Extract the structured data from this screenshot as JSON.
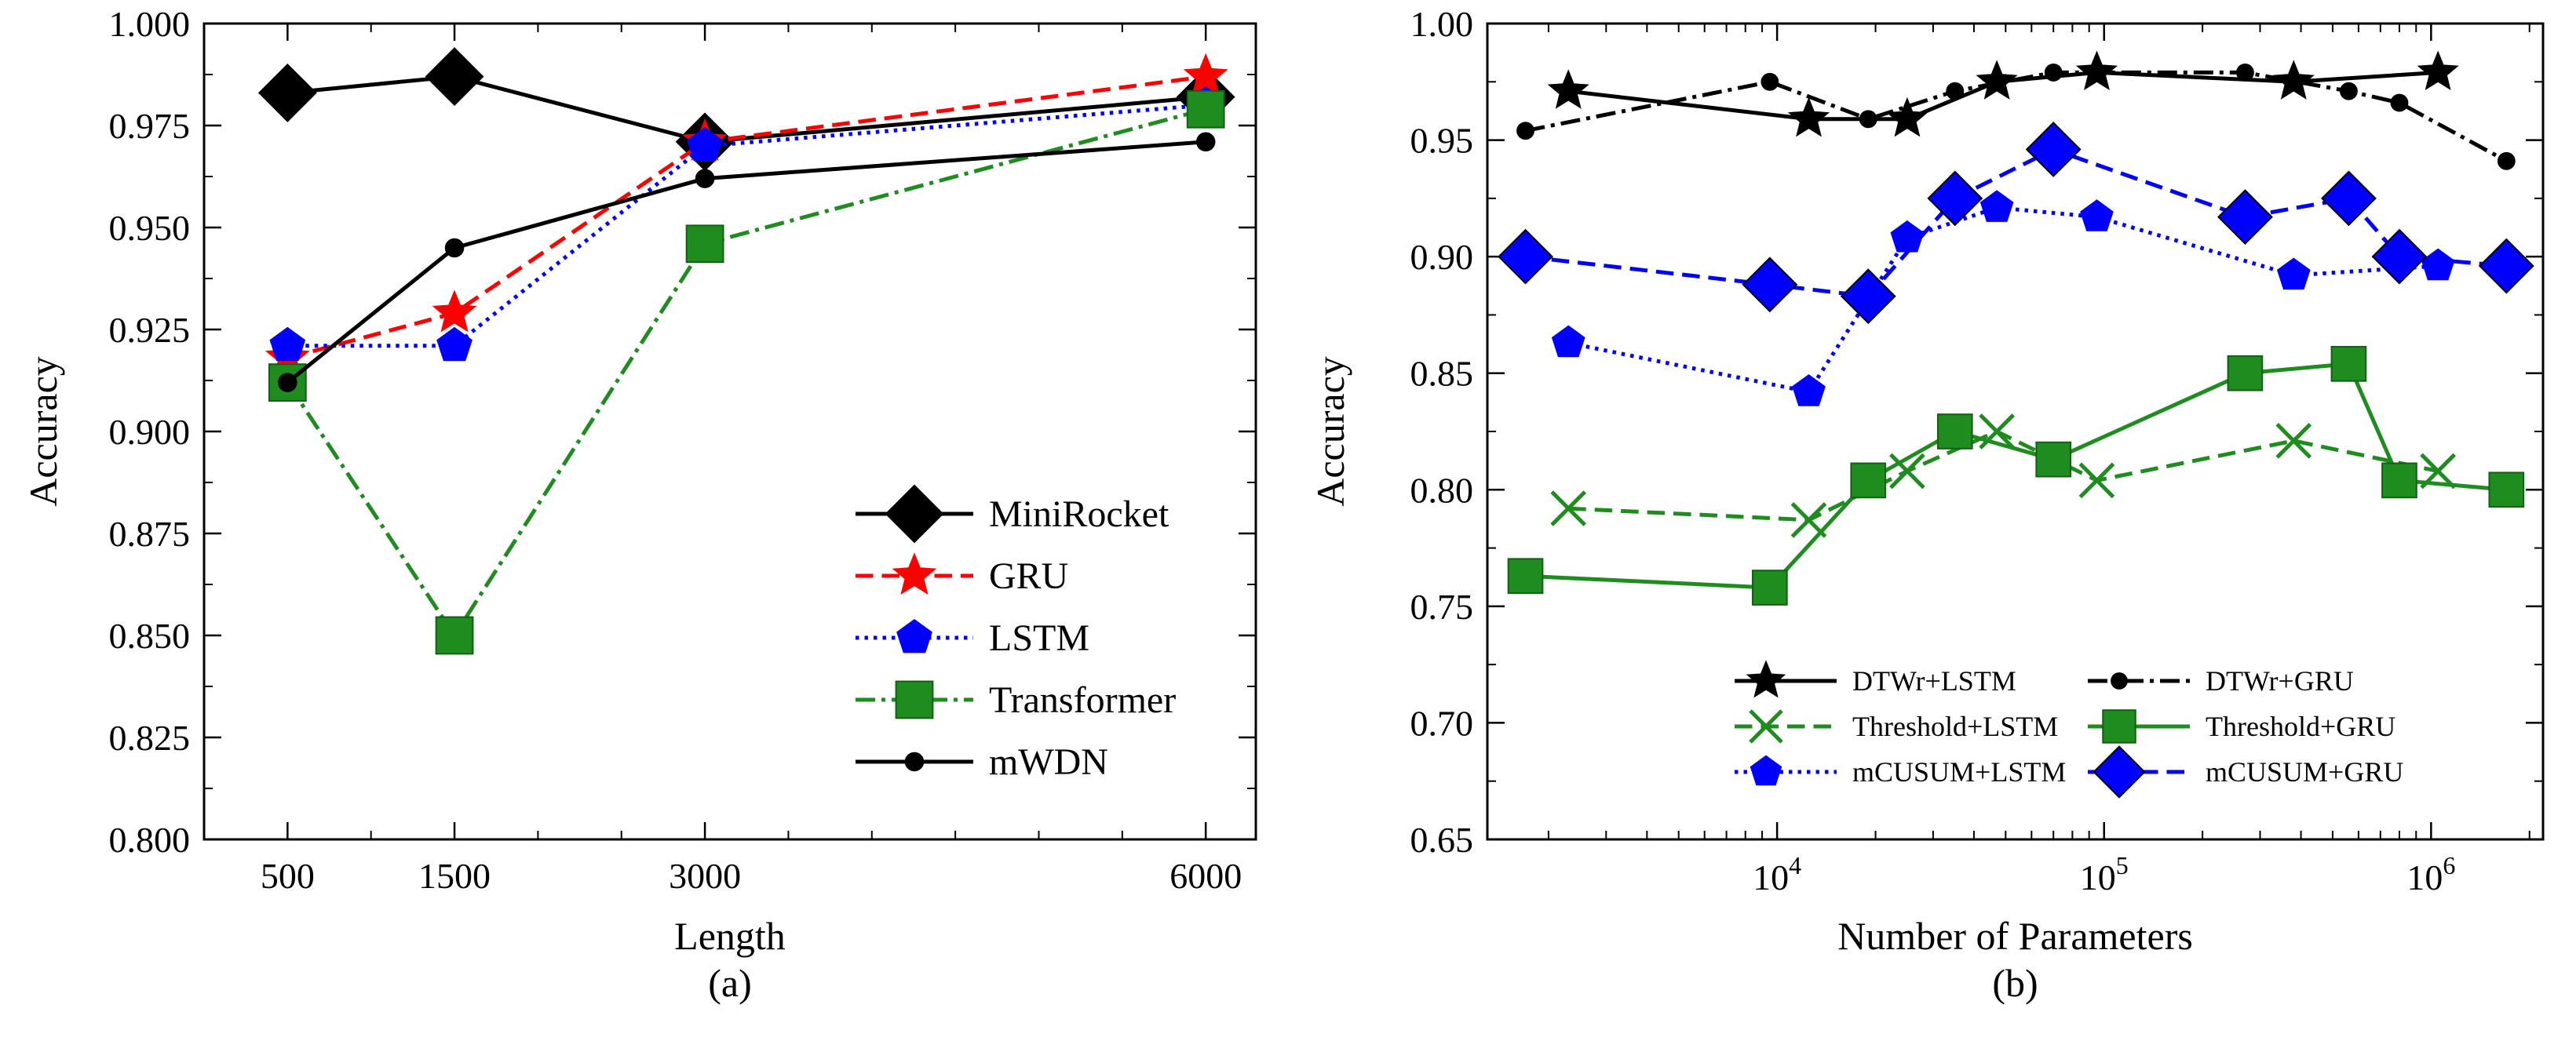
{
  "chart_data": [
    {
      "id": "a",
      "type": "line",
      "caption": "(a)",
      "xlabel": "Length",
      "ylabel": "Accuracy",
      "x_ticks": [
        500,
        1500,
        3000,
        6000
      ],
      "x_tick_labels": [
        "500",
        "1500",
        "3000",
        "6000"
      ],
      "y_ticks": [
        0.8,
        0.825,
        0.85,
        0.875,
        0.9,
        0.925,
        0.95,
        0.975,
        1.0
      ],
      "y_tick_labels": [
        "0.800",
        "0.825",
        "0.850",
        "0.875",
        "0.900",
        "0.925",
        "0.950",
        "0.975",
        "1.000"
      ],
      "xlim": [
        0,
        6300
      ],
      "ylim": [
        0.8,
        1.0
      ],
      "legend_position": "lower-right",
      "series": [
        {
          "name": "MiniRocket",
          "color": "#000000",
          "dash": "solid",
          "marker": "diamond",
          "x": [
            500,
            1500,
            3000,
            6000
          ],
          "y": [
            0.983,
            0.987,
            0.971,
            0.982
          ]
        },
        {
          "name": "GRU",
          "color": "#ff0000",
          "dash": "dashed",
          "marker": "star",
          "x": [
            500,
            1500,
            3000,
            6000
          ],
          "y": [
            0.918,
            0.929,
            0.971,
            0.987
          ]
        },
        {
          "name": "LSTM",
          "color": "#0000ff",
          "dash": "dotted",
          "marker": "pentagon",
          "x": [
            500,
            1500,
            3000,
            6000
          ],
          "y": [
            0.921,
            0.921,
            0.97,
            0.98
          ]
        },
        {
          "name": "Transformer",
          "color": "#1e8c1e",
          "dash": "dashdot",
          "marker": "square",
          "x": [
            500,
            1500,
            3000,
            6000
          ],
          "y": [
            0.912,
            0.85,
            0.946,
            0.979
          ]
        },
        {
          "name": "mWDN",
          "color": "#000000",
          "dash": "solid",
          "marker": "circle",
          "x": [
            500,
            1500,
            3000,
            6000
          ],
          "y": [
            0.912,
            0.945,
            0.962,
            0.971
          ]
        }
      ]
    },
    {
      "id": "b",
      "type": "line",
      "caption": "(b)",
      "xlabel": "Number of Parameters",
      "ylabel": "Accuracy",
      "xscale": "log",
      "x_ticks": [
        10000,
        100000,
        1000000
      ],
      "x_tick_labels": [
        {
          "base": "10",
          "exp": "4"
        },
        {
          "base": "10",
          "exp": "5"
        },
        {
          "base": "10",
          "exp": "6"
        }
      ],
      "y_ticks": [
        0.65,
        0.7,
        0.75,
        0.8,
        0.85,
        0.9,
        0.95,
        1.0
      ],
      "y_tick_labels": [
        "0.65",
        "0.70",
        "0.75",
        "0.80",
        "0.85",
        "0.90",
        "0.95",
        "1.00"
      ],
      "xlim": [
        1300,
        2200000
      ],
      "ylim": [
        0.65,
        1.0
      ],
      "legend_position": "lower-center",
      "series": [
        {
          "name": "DTWr+LSTM",
          "color": "#000000",
          "dash": "solid",
          "marker": "star",
          "x": [
            2300,
            12500,
            25000,
            47000,
            95000,
            380000,
            1050000
          ],
          "y": [
            0.971,
            0.959,
            0.959,
            0.975,
            0.979,
            0.975,
            0.979
          ]
        },
        {
          "name": "DTWr+GRU",
          "color": "#000000",
          "dash": "dashdot",
          "marker": "circle",
          "x": [
            1700,
            9500,
            19000,
            35000,
            70000,
            270000,
            560000,
            800000,
            1700000
          ],
          "y": [
            0.954,
            0.975,
            0.959,
            0.971,
            0.979,
            0.979,
            0.971,
            0.966,
            0.941
          ]
        },
        {
          "name": "Threshold+LSTM",
          "color": "#1e8c1e",
          "dash": "dashed",
          "marker": "x",
          "x": [
            2300,
            12500,
            25000,
            47000,
            95000,
            380000,
            1050000
          ],
          "y": [
            0.792,
            0.787,
            0.808,
            0.825,
            0.804,
            0.821,
            0.808
          ]
        },
        {
          "name": "Threshold+GRU",
          "color": "#1e8c1e",
          "dash": "solid",
          "marker": "square",
          "x": [
            1700,
            9500,
            19000,
            35000,
            70000,
            270000,
            560000,
            800000,
            1700000
          ],
          "y": [
            0.763,
            0.758,
            0.804,
            0.825,
            0.813,
            0.85,
            0.854,
            0.804,
            0.8
          ]
        },
        {
          "name": "mCUSUM+LSTM",
          "color": "#0000ff",
          "dash": "dotted",
          "marker": "pentagon",
          "x": [
            2300,
            12500,
            25000,
            47000,
            95000,
            380000,
            1050000
          ],
          "y": [
            0.863,
            0.842,
            0.908,
            0.921,
            0.917,
            0.892,
            0.896
          ]
        },
        {
          "name": "mCUSUM+GRU",
          "color": "#0000ff",
          "dash": "dashed",
          "marker": "diamond",
          "x": [
            1700,
            9500,
            19000,
            35000,
            70000,
            270000,
            560000,
            800000,
            1700000
          ],
          "y": [
            0.9,
            0.888,
            0.883,
            0.925,
            0.946,
            0.917,
            0.925,
            0.9,
            0.896
          ]
        }
      ]
    }
  ]
}
